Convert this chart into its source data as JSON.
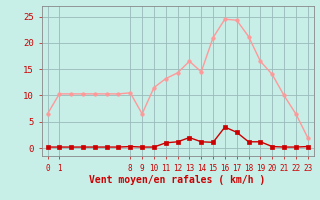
{
  "x_hours": [
    0,
    1,
    2,
    3,
    4,
    5,
    6,
    7,
    8,
    9,
    10,
    11,
    12,
    13,
    14,
    15,
    16,
    17,
    18,
    19,
    20,
    21,
    22
  ],
  "x_tick_positions": [
    0,
    1,
    7,
    8,
    9,
    10,
    11,
    12,
    13,
    14,
    15,
    16,
    17,
    18,
    19,
    20,
    21,
    22
  ],
  "x_tick_labels": [
    "0",
    "1",
    "8",
    "9",
    "10",
    "11",
    "12",
    "13",
    "14",
    "15",
    "16",
    "17",
    "18",
    "19",
    "20",
    "21",
    "22",
    "23"
  ],
  "rafales_y": [
    6.5,
    10.3,
    10.3,
    10.3,
    10.3,
    10.3,
    10.3,
    10.5,
    6.5,
    11.5,
    13.2,
    14.3,
    16.5,
    14.5,
    21.0,
    24.5,
    24.3,
    21.2,
    16.5,
    14.0,
    10.0,
    6.5,
    2.0
  ],
  "moyen_y": [
    0.2,
    0.2,
    0.2,
    0.2,
    0.2,
    0.2,
    0.2,
    0.3,
    0.2,
    0.2,
    1.0,
    1.2,
    2.0,
    1.2,
    1.1,
    4.0,
    3.0,
    1.2,
    1.2,
    0.3,
    0.2,
    0.2,
    0.3
  ],
  "rafales_color": "#FF9999",
  "moyen_color": "#CC0000",
  "background_color": "#C8EEE8",
  "grid_color": "#99BBBB",
  "yticks": [
    0,
    5,
    10,
    15,
    20,
    25
  ],
  "ylim": [
    -1.5,
    27
  ],
  "xlim": [
    -0.5,
    22.5
  ],
  "xlabel": "Vent moyen/en rafales ( km/h )",
  "xlabel_color": "#CC0000",
  "tick_color": "#CC0000",
  "spine_color": "#888888",
  "tick_fontsize": 5.5,
  "xlabel_fontsize": 7,
  "ytick_fontsize": 6.5,
  "linewidth": 1.0,
  "marker_size_rafales": 2.5,
  "marker_size_moyen": 2.5
}
